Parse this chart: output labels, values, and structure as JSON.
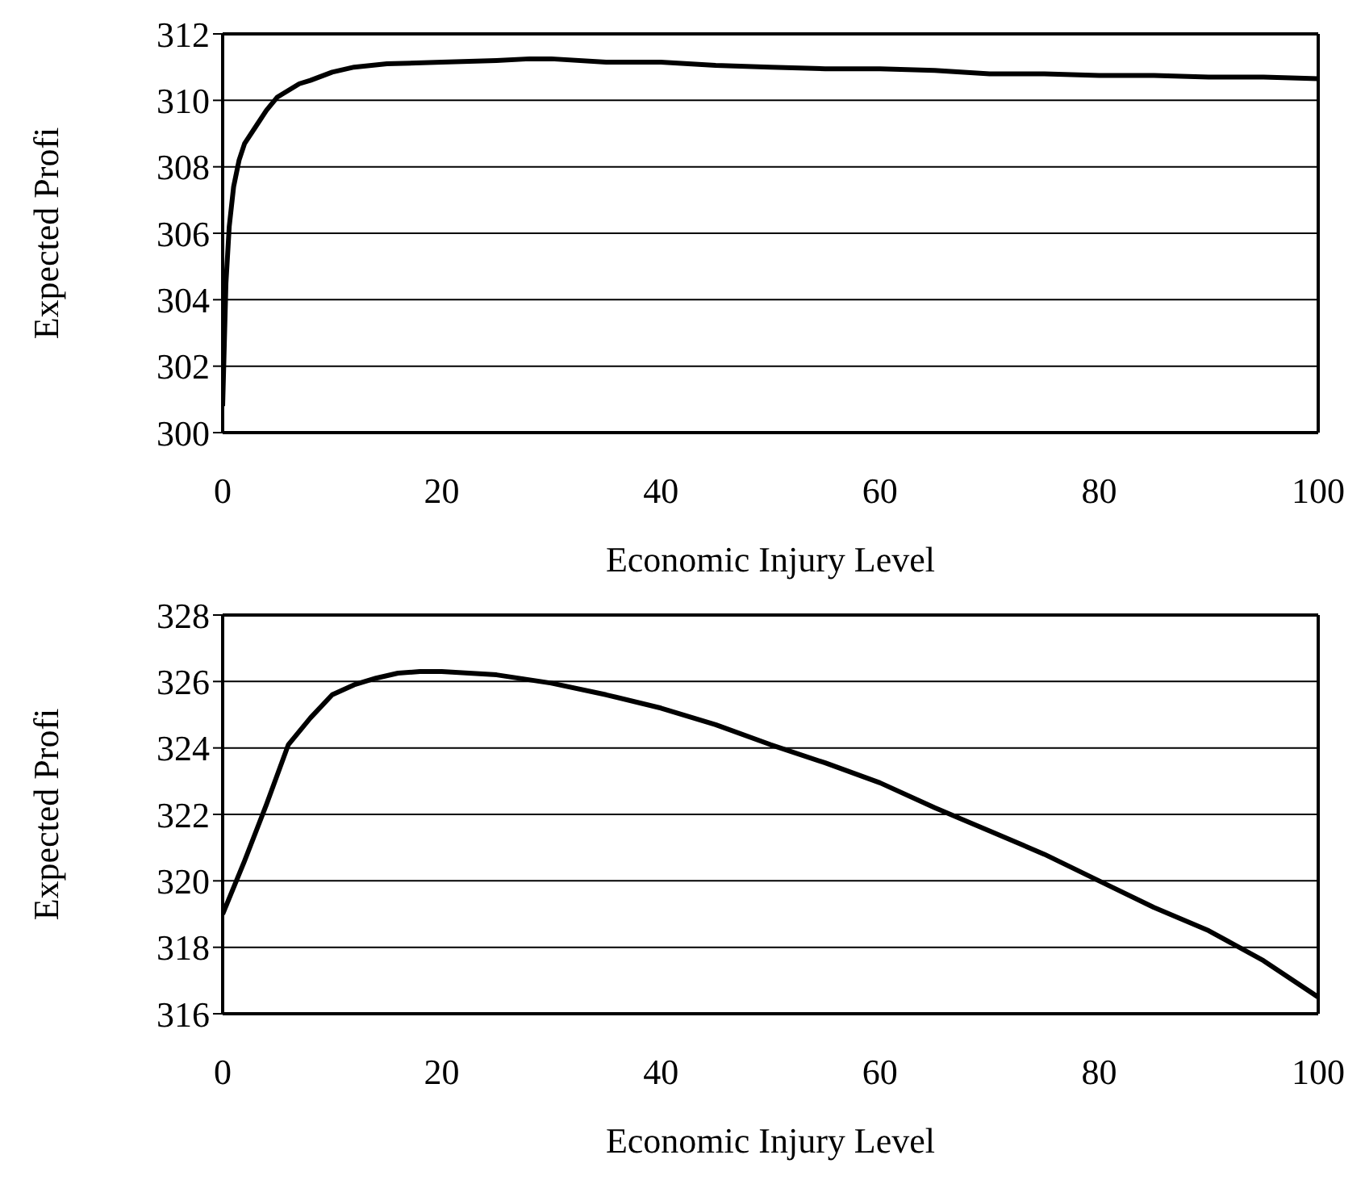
{
  "chart_data": [
    {
      "type": "line",
      "xlabel": "Economic Injury Level",
      "ylabel": "Expected Profi",
      "xlim": [
        0,
        100
      ],
      "xticks": [
        0,
        20,
        40,
        60,
        80,
        100
      ],
      "ylim": [
        300,
        312
      ],
      "yticks": [
        300,
        302,
        304,
        306,
        308,
        310,
        312
      ],
      "grid": "y",
      "marker": "none",
      "line_style": "solid",
      "series": [
        {
          "color": "#000000",
          "x": [
            0,
            0.3,
            0.6,
            1,
            1.5,
            2,
            3,
            4,
            5,
            6,
            7,
            8,
            10,
            12,
            15,
            20,
            25,
            28,
            30,
            35,
            40,
            45,
            50,
            55,
            60,
            65,
            70,
            75,
            80,
            85,
            90,
            95,
            100
          ],
          "values": [
            300.8,
            304.5,
            306.2,
            307.4,
            308.2,
            308.7,
            309.2,
            309.7,
            310.1,
            310.3,
            310.5,
            310.6,
            310.85,
            311.0,
            311.1,
            311.15,
            311.2,
            311.25,
            311.25,
            311.15,
            311.15,
            311.05,
            311.0,
            310.95,
            310.95,
            310.9,
            310.8,
            310.8,
            310.75,
            310.75,
            310.7,
            310.7,
            310.65
          ]
        }
      ]
    },
    {
      "type": "line",
      "xlabel": "Economic Injury Level",
      "ylabel": "Expected Profi",
      "xlim": [
        0,
        100
      ],
      "xticks": [
        0,
        20,
        40,
        60,
        80,
        100
      ],
      "ylim": [
        316,
        328
      ],
      "yticks": [
        316,
        318,
        320,
        322,
        324,
        326,
        328
      ],
      "grid": "y",
      "marker": "none",
      "line_style": "solid",
      "series": [
        {
          "color": "#000000",
          "x": [
            0,
            1,
            2,
            4,
            6,
            8,
            10,
            12,
            14,
            16,
            18,
            20,
            25,
            30,
            35,
            40,
            45,
            50,
            55,
            60,
            65,
            70,
            75,
            80,
            85,
            90,
            95,
            100
          ],
          "values": [
            319.0,
            319.8,
            320.6,
            322.3,
            324.1,
            324.9,
            325.6,
            325.9,
            326.1,
            326.25,
            326.3,
            326.3,
            326.2,
            325.95,
            325.6,
            325.2,
            324.7,
            324.1,
            323.55,
            322.95,
            322.2,
            321.5,
            320.8,
            320.0,
            319.2,
            318.5,
            317.6,
            316.5
          ]
        }
      ]
    }
  ]
}
